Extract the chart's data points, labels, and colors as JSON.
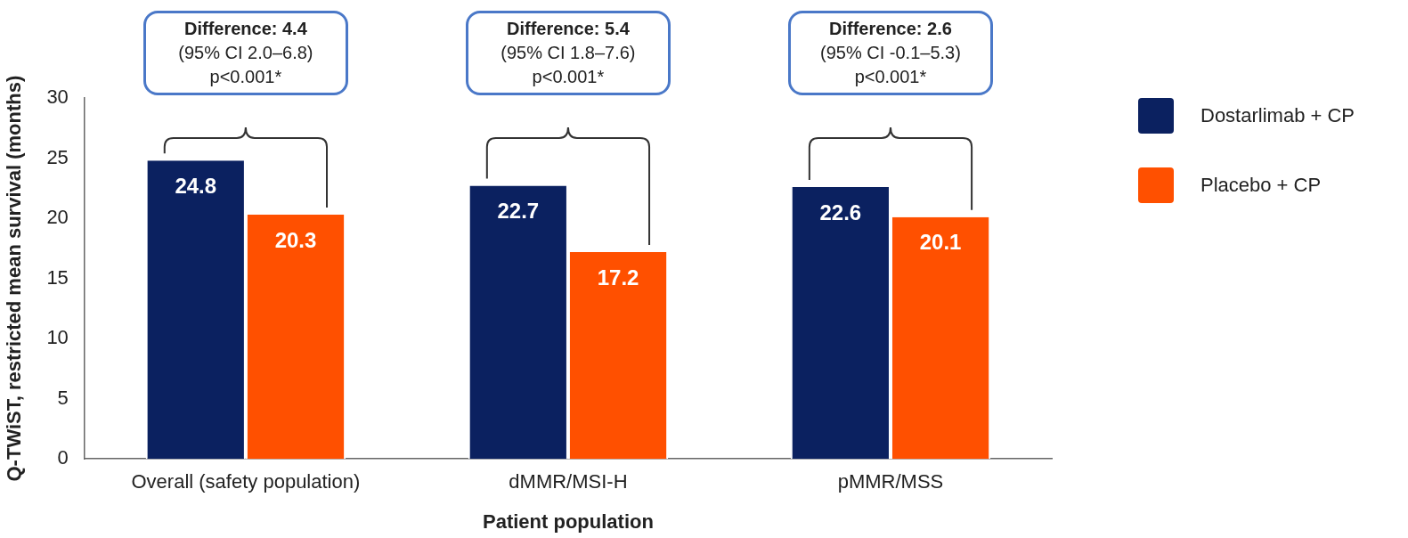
{
  "chart_data": {
    "type": "bar",
    "xlabel": "Patient population",
    "ylabel": "Q-TWiST, restricted mean survival (months)",
    "categories": [
      "Overall (safety population)",
      "dMMR/MSI-H",
      "pMMR/MSS"
    ],
    "series": [
      {
        "name": "Dostarlimab + CP",
        "color": "#0b2160",
        "values": [
          24.8,
          22.7,
          22.6
        ]
      },
      {
        "name": "Placebo + CP",
        "color": "#ff5000",
        "values": [
          20.3,
          17.2,
          20.1
        ]
      }
    ],
    "ylim": [
      0,
      30
    ],
    "yticks": [
      0,
      5,
      10,
      15,
      20,
      25,
      30
    ],
    "grid": false,
    "legend": "top right",
    "data_labels": true,
    "annotations": [
      "Difference: 4.4\n(95% CI 2.0–6.8)\np<0.001*",
      "Difference: 5.4\n(95% CI 1.8–7.6)\np<0.001*",
      "Difference: 2.6\n(95% CI -0.1–5.3)\np<0.001*"
    ]
  }
}
